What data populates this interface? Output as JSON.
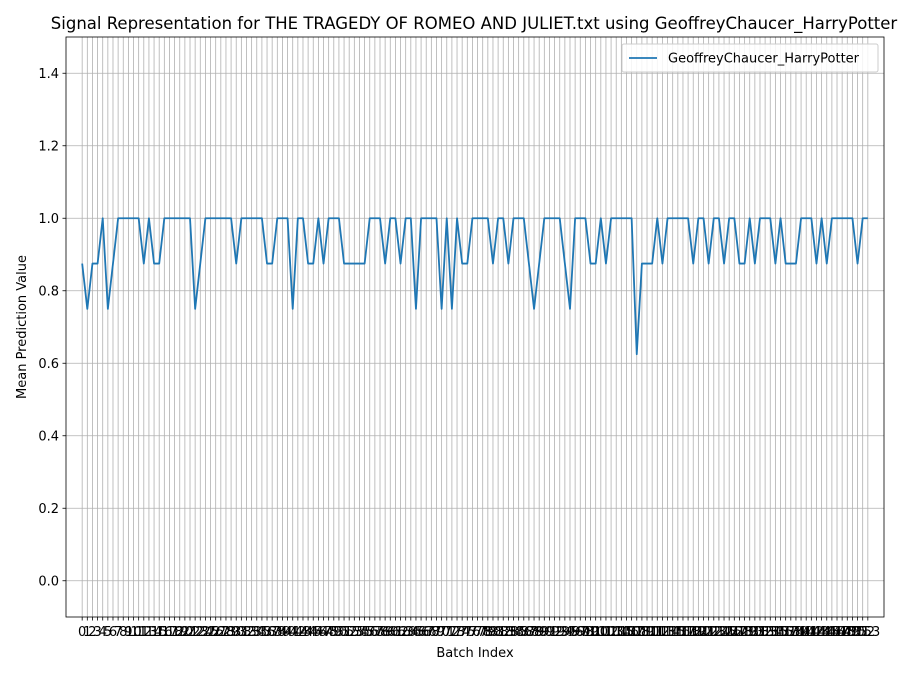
{
  "chart_data": {
    "type": "line",
    "title": "Signal Representation for THE TRAGEDY OF ROMEO AND JULIET.txt using GeoffreyChaucer_HarryPotter",
    "xlabel": "Batch Index",
    "ylabel": "Mean Prediction Value",
    "xlim": [
      -3.15,
      156.15
    ],
    "ylim": [
      -0.1,
      1.5
    ],
    "yticks": [
      0.0,
      0.2,
      0.4,
      0.6,
      0.8,
      1.0,
      1.2,
      1.4
    ],
    "grid": true,
    "legend_position": "upper right",
    "series": [
      {
        "name": "GeoffreyChaucer_HarryPotter",
        "color": "#1f77b4",
        "values": [
          0.875,
          0.75,
          0.875,
          0.875,
          1.0,
          0.75,
          0.875,
          1.0,
          1.0,
          1.0,
          1.0,
          1.0,
          0.875,
          1.0,
          0.875,
          0.875,
          1.0,
          1.0,
          1.0,
          1.0,
          1.0,
          1.0,
          0.75,
          0.875,
          1.0,
          1.0,
          1.0,
          1.0,
          1.0,
          1.0,
          0.875,
          1.0,
          1.0,
          1.0,
          1.0,
          1.0,
          0.875,
          0.875,
          1.0,
          1.0,
          1.0,
          0.75,
          1.0,
          1.0,
          0.875,
          0.875,
          1.0,
          0.875,
          1.0,
          1.0,
          1.0,
          0.875,
          0.875,
          0.875,
          0.875,
          0.875,
          1.0,
          1.0,
          1.0,
          0.875,
          1.0,
          1.0,
          0.875,
          1.0,
          1.0,
          0.75,
          1.0,
          1.0,
          1.0,
          1.0,
          0.75,
          1.0,
          0.75,
          1.0,
          0.875,
          0.875,
          1.0,
          1.0,
          1.0,
          1.0,
          0.875,
          1.0,
          1.0,
          0.875,
          1.0,
          1.0,
          1.0,
          0.875,
          0.75,
          0.875,
          1.0,
          1.0,
          1.0,
          1.0,
          0.875,
          0.75,
          1.0,
          1.0,
          1.0,
          0.875,
          0.875,
          1.0,
          0.875,
          1.0,
          1.0,
          1.0,
          1.0,
          1.0,
          0.625,
          0.875,
          0.875,
          0.875,
          1.0,
          0.875,
          1.0,
          1.0,
          1.0,
          1.0,
          1.0,
          0.875,
          1.0,
          1.0,
          0.875,
          1.0,
          1.0,
          0.875,
          1.0,
          1.0,
          0.875,
          0.875,
          1.0,
          0.875,
          1.0,
          1.0,
          1.0,
          0.875,
          1.0,
          0.875,
          0.875,
          0.875,
          1.0,
          1.0,
          1.0,
          0.875,
          1.0,
          0.875,
          1.0,
          1.0,
          1.0,
          1.0,
          1.0,
          0.875,
          1.0,
          1.0
        ]
      }
    ]
  }
}
